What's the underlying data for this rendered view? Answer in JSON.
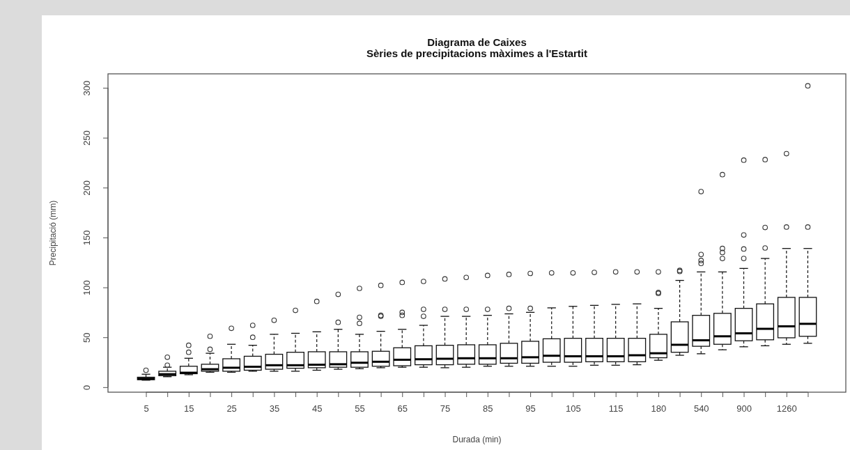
{
  "chart_data": {
    "type": "box",
    "title": "Diagrama de Caixes",
    "subtitle": "Sèries de precipitacions màximes a l'Estartit",
    "xlabel": "Durada (min)",
    "ylabel": "Precipitació (mm)",
    "categories": [
      "5",
      null,
      "15",
      null,
      "25",
      null,
      "35",
      null,
      "45",
      null,
      "55",
      null,
      "65",
      null,
      "75",
      null,
      "85",
      null,
      "95",
      null,
      "105",
      null,
      "115",
      null,
      "180",
      null,
      "540",
      null,
      "900",
      null,
      "1260",
      null
    ],
    "ylim": [
      -5,
      314
    ],
    "yticks": [
      0,
      50,
      100,
      150,
      200,
      250,
      300
    ],
    "boxes": [
      {
        "low": 7,
        "q1": 7.5,
        "median": 8.5,
        "q3": 10,
        "high": 13,
        "outliers": [
          17
        ]
      },
      {
        "low": 10.5,
        "q1": 11.5,
        "median": 13,
        "q3": 16,
        "high": 20,
        "outliers": [
          22,
          30
        ]
      },
      {
        "low": 12.5,
        "q1": 13.5,
        "median": 14.5,
        "q3": 21,
        "high": 29,
        "outliers": [
          35,
          42
        ]
      },
      {
        "low": 15,
        "q1": 16,
        "median": 18,
        "q3": 23,
        "high": 34,
        "outliers": [
          38,
          51
        ]
      },
      {
        "low": 15,
        "q1": 16,
        "median": 19.5,
        "q3": 28.5,
        "high": 43,
        "outliers": [
          59
        ]
      },
      {
        "low": 16,
        "q1": 17,
        "median": 20.5,
        "q3": 31,
        "high": 42,
        "outliers": [
          50,
          62
        ]
      },
      {
        "low": 16,
        "q1": 18,
        "median": 22,
        "q3": 33,
        "high": 53,
        "outliers": [
          67
        ]
      },
      {
        "low": 16,
        "q1": 19,
        "median": 22,
        "q3": 35,
        "high": 54,
        "outliers": [
          77
        ]
      },
      {
        "low": 17,
        "q1": 19.5,
        "median": 22.5,
        "q3": 35.5,
        "high": 55.5,
        "outliers": [
          86
        ]
      },
      {
        "low": 18,
        "q1": 20,
        "median": 23,
        "q3": 35.5,
        "high": 58,
        "outliers": [
          65,
          93
        ]
      },
      {
        "low": 18.5,
        "q1": 20,
        "median": 24.5,
        "q3": 35.5,
        "high": 53,
        "outliers": [
          64,
          70,
          99
        ]
      },
      {
        "low": 19.5,
        "q1": 21,
        "median": 25.5,
        "q3": 36,
        "high": 56,
        "outliers": [
          71,
          72,
          102
        ]
      },
      {
        "low": 20,
        "q1": 21.5,
        "median": 27.5,
        "q3": 39.5,
        "high": 58,
        "outliers": [
          72,
          75,
          105
        ]
      },
      {
        "low": 20,
        "q1": 22.5,
        "median": 28,
        "q3": 41.5,
        "high": 62,
        "outliers": [
          71,
          78,
          106
        ]
      },
      {
        "low": 19.5,
        "q1": 22.5,
        "median": 28.5,
        "q3": 42,
        "high": 71,
        "outliers": [
          78,
          108.5
        ]
      },
      {
        "low": 20,
        "q1": 23,
        "median": 29,
        "q3": 42.5,
        "high": 71,
        "outliers": [
          78,
          110
        ]
      },
      {
        "low": 21,
        "q1": 23,
        "median": 29,
        "q3": 42.5,
        "high": 72,
        "outliers": [
          78,
          112
        ]
      },
      {
        "low": 21,
        "q1": 24,
        "median": 29,
        "q3": 44,
        "high": 73.5,
        "outliers": [
          79,
          113
        ]
      },
      {
        "low": 21,
        "q1": 24,
        "median": 30,
        "q3": 46,
        "high": 75,
        "outliers": [
          79,
          114
        ]
      },
      {
        "low": 21,
        "q1": 25,
        "median": 31.5,
        "q3": 48.5,
        "high": 79.5,
        "outliers": [
          114.5
        ]
      },
      {
        "low": 21,
        "q1": 25,
        "median": 31,
        "q3": 49,
        "high": 81,
        "outliers": [
          114.5
        ]
      },
      {
        "low": 22,
        "q1": 25.5,
        "median": 31,
        "q3": 49,
        "high": 82,
        "outliers": [
          115
        ]
      },
      {
        "low": 22,
        "q1": 25.5,
        "median": 31,
        "q3": 49,
        "high": 83,
        "outliers": [
          115.5
        ]
      },
      {
        "low": 22.5,
        "q1": 25.5,
        "median": 32,
        "q3": 49,
        "high": 83.5,
        "outliers": [
          115.5
        ]
      },
      {
        "low": 27,
        "q1": 29.5,
        "median": 34,
        "q3": 53,
        "high": 79,
        "outliers": [
          94,
          95,
          115.5
        ]
      },
      {
        "low": 32,
        "q1": 35,
        "median": 42.5,
        "q3": 65.5,
        "high": 107,
        "outliers": [
          116,
          117
        ]
      },
      {
        "low": 33.5,
        "q1": 41,
        "median": 47,
        "q3": 72,
        "high": 115.5,
        "outliers": [
          124,
          127,
          133,
          196
        ]
      },
      {
        "low": 37.5,
        "q1": 43,
        "median": 51,
        "q3": 74,
        "high": 115.5,
        "outliers": [
          129,
          135,
          139,
          213
        ]
      },
      {
        "low": 40.5,
        "q1": 46.5,
        "median": 54,
        "q3": 79,
        "high": 119,
        "outliers": [
          129,
          138.5,
          152.5,
          227.5
        ]
      },
      {
        "low": 41.5,
        "q1": 47.5,
        "median": 58.5,
        "q3": 83.5,
        "high": 129,
        "outliers": [
          139.5,
          160,
          228
        ]
      },
      {
        "low": 43,
        "q1": 49.5,
        "median": 61,
        "q3": 90,
        "high": 139,
        "outliers": [
          160.5,
          234
        ]
      },
      {
        "low": 44,
        "q1": 51,
        "median": 63.5,
        "q3": 90,
        "high": 139,
        "outliers": [
          160.5,
          302
        ]
      }
    ]
  }
}
